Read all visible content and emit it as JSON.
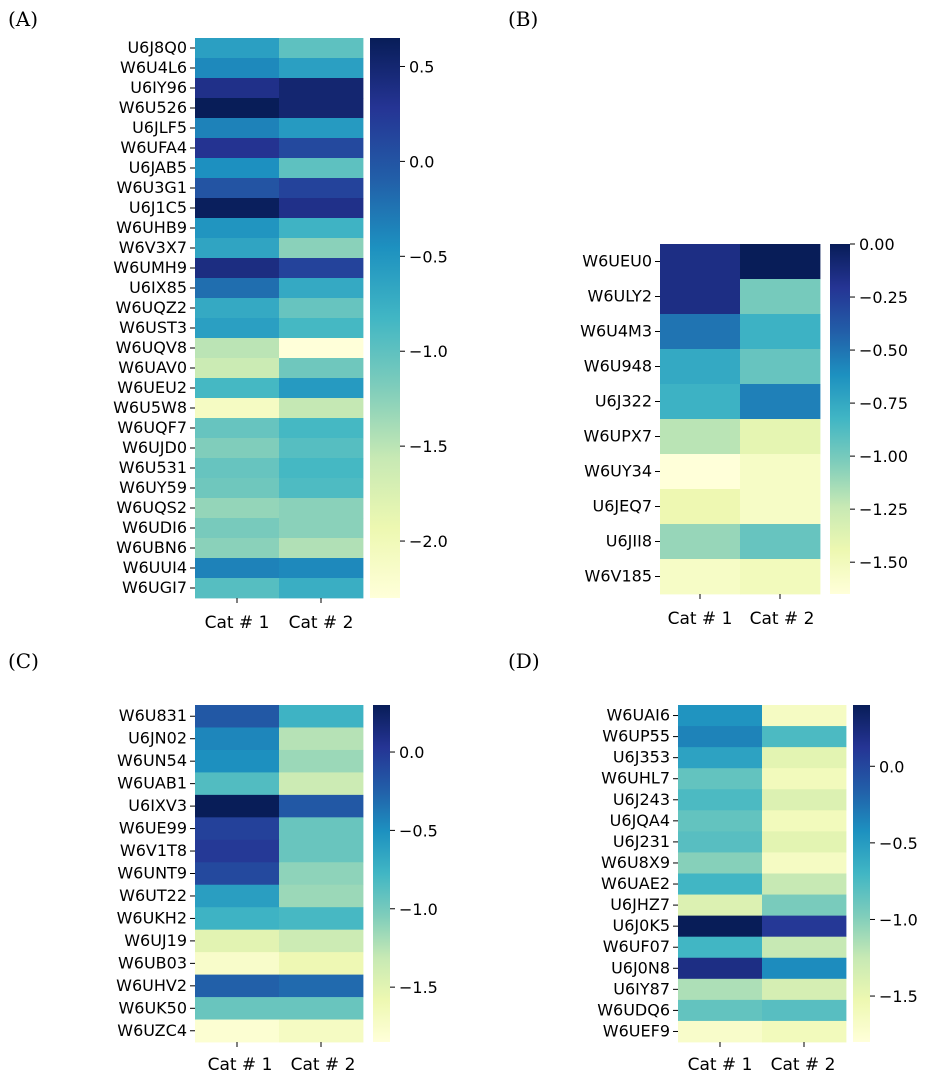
{
  "chart_data": [
    {
      "type": "heatmap",
      "panel_label": "(A)",
      "xcategories": [
        "Cat # 1",
        "Cat # 2"
      ],
      "rows": [
        "U6J8Q0",
        "W6U4L6",
        "U6IY96",
        "W6U526",
        "U6JLF5",
        "W6UFA4",
        "U6JAB5",
        "W6U3G1",
        "U6J1C5",
        "W6UHB9",
        "W6V3X7",
        "W6UMH9",
        "U6IX85",
        "W6UQZ2",
        "W6UST3",
        "W6UQV8",
        "W6UAV0",
        "W6UEU2",
        "W6U5W8",
        "W6UQF7",
        "W6UJD0",
        "W6U531",
        "W6UY59",
        "W6UQS2",
        "W6UDI6",
        "W6UBN6",
        "W6UUI4",
        "W6UGI7"
      ],
      "values": [
        [
          -0.6,
          -1.0
        ],
        [
          -0.4,
          -0.6
        ],
        [
          0.35,
          0.5
        ],
        [
          0.65,
          0.5
        ],
        [
          -0.35,
          -0.55
        ],
        [
          0.3,
          0.1
        ],
        [
          -0.45,
          -1.0
        ],
        [
          0.0,
          0.15
        ],
        [
          0.62,
          0.35
        ],
        [
          -0.5,
          -0.8
        ],
        [
          -0.65,
          -1.25
        ],
        [
          0.4,
          0.15
        ],
        [
          -0.2,
          -0.7
        ],
        [
          -0.7,
          -1.05
        ],
        [
          -0.6,
          -0.85
        ],
        [
          -1.5,
          -2.3
        ],
        [
          -1.6,
          -1.1
        ],
        [
          -0.85,
          -0.55
        ],
        [
          -2.1,
          -1.55
        ],
        [
          -1.05,
          -0.85
        ],
        [
          -1.2,
          -0.95
        ],
        [
          -1.05,
          -0.85
        ],
        [
          -1.1,
          -0.9
        ],
        [
          -1.3,
          -1.25
        ],
        [
          -1.15,
          -1.25
        ],
        [
          -1.25,
          -1.45
        ],
        [
          -0.35,
          -0.4
        ],
        [
          -0.95,
          -0.75
        ]
      ],
      "colorbar": {
        "vmin": -2.3,
        "vmax": 0.65,
        "ticks": [
          0.5,
          0.0,
          -0.5,
          -1.0,
          -1.5,
          -2.0
        ],
        "tick_labels": [
          "0.5",
          "0.0",
          "−0.5",
          "−1.0",
          "−1.5",
          "−2.0"
        ]
      }
    },
    {
      "type": "heatmap",
      "panel_label": "(B)",
      "xcategories": [
        "Cat # 1",
        "Cat # 2"
      ],
      "rows": [
        "W6UEU0",
        "W6ULY2",
        "W6U4M3",
        "W6U948",
        "U6J322",
        "W6UPX7",
        "W6UY34",
        "U6JEQ7",
        "U6JII8",
        "W6V185"
      ],
      "values": [
        [
          -0.15,
          0.0
        ],
        [
          -0.15,
          -1.0
        ],
        [
          -0.5,
          -0.8
        ],
        [
          -0.75,
          -0.95
        ],
        [
          -0.8,
          -0.55
        ],
        [
          -1.2,
          -1.4
        ],
        [
          -1.65,
          -1.55
        ],
        [
          -1.45,
          -1.55
        ],
        [
          -1.1,
          -0.95
        ],
        [
          -1.55,
          -1.5
        ]
      ],
      "colorbar": {
        "vmin": -1.65,
        "vmax": 0.0,
        "ticks": [
          0.0,
          -0.25,
          -0.5,
          -0.75,
          -1.0,
          -1.25,
          -1.5
        ],
        "tick_labels": [
          "0.00",
          "−0.25",
          "−0.50",
          "−0.75",
          "−1.00",
          "−1.25",
          "−1.50"
        ]
      }
    },
    {
      "type": "heatmap",
      "panel_label": "(C)",
      "xcategories": [
        "Cat # 1",
        "Cat # 2"
      ],
      "rows": [
        "W6U831",
        "U6JN02",
        "W6UN54",
        "W6UAB1",
        "U6IXV3",
        "W6UE99",
        "W6V1T8",
        "W6UNT9",
        "W6UT22",
        "W6UKH2",
        "W6UJ19",
        "W6UB03",
        "W6UHV2",
        "W6UK50",
        "W6UZC4"
      ],
      "values": [
        [
          -0.2,
          -0.75
        ],
        [
          -0.45,
          -1.25
        ],
        [
          -0.5,
          -1.15
        ],
        [
          -0.85,
          -1.35
        ],
        [
          0.3,
          -0.2
        ],
        [
          -0.05,
          -0.95
        ],
        [
          0.0,
          -0.95
        ],
        [
          -0.1,
          -1.1
        ],
        [
          -0.6,
          -1.15
        ],
        [
          -0.75,
          -0.8
        ],
        [
          -1.5,
          -1.35
        ],
        [
          -1.75,
          -1.6
        ],
        [
          -0.25,
          -0.3
        ],
        [
          -0.95,
          -0.95
        ],
        [
          -1.8,
          -1.7
        ]
      ],
      "colorbar": {
        "vmin": -1.85,
        "vmax": 0.3,
        "ticks": [
          0.0,
          -0.5,
          -1.0,
          -1.5
        ],
        "tick_labels": [
          "0.0",
          "−0.5",
          "−1.0",
          "−1.5"
        ]
      }
    },
    {
      "type": "heatmap",
      "panel_label": "(D)",
      "xcategories": [
        "Cat # 1",
        "Cat # 2"
      ],
      "rows": [
        "W6UAI6",
        "W6UP55",
        "U6J353",
        "W6UHL7",
        "U6J243",
        "U6JQA4",
        "U6J231",
        "W6U8X9",
        "W6UAE2",
        "U6JHZ7",
        "U6J0K5",
        "W6UF07",
        "U6J0N8",
        "U6IY87",
        "W6UDQ6",
        "W6UEF9"
      ],
      "values": [
        [
          -0.45,
          -1.65
        ],
        [
          -0.35,
          -0.75
        ],
        [
          -0.55,
          -1.45
        ],
        [
          -0.85,
          -1.6
        ],
        [
          -0.75,
          -1.4
        ],
        [
          -0.85,
          -1.6
        ],
        [
          -0.8,
          -1.45
        ],
        [
          -1.0,
          -1.65
        ],
        [
          -0.7,
          -1.25
        ],
        [
          -1.4,
          -0.95
        ],
        [
          0.4,
          0.1
        ],
        [
          -0.7,
          -1.25
        ],
        [
          0.2,
          -0.4
        ],
        [
          -1.15,
          -1.35
        ],
        [
          -0.85,
          -0.8
        ],
        [
          -1.7,
          -1.6
        ]
      ],
      "colorbar": {
        "vmin": -1.8,
        "vmax": 0.4,
        "ticks": [
          0.0,
          -0.5,
          -1.0,
          -1.5
        ],
        "tick_labels": [
          "0.0",
          "−0.5",
          "−1.0",
          "−1.5"
        ]
      }
    }
  ]
}
